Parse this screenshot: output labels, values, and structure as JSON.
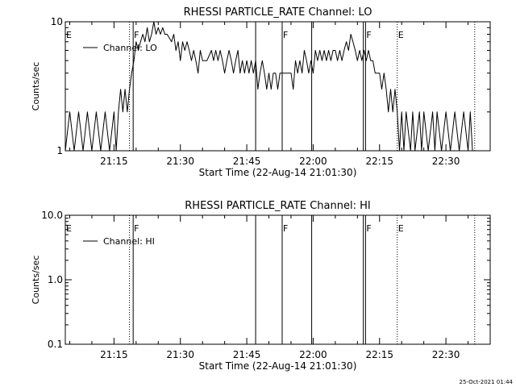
{
  "timestamp": "25-Oct-2021 01:44",
  "chart_data": [
    {
      "type": "line",
      "title": "RHESSI PARTICLE_RATE Channel: LO",
      "xlabel": "Start Time (22-Aug-14 21:01:30)",
      "ylabel": "Counts/sec",
      "y_scale": "log",
      "ylim": [
        1,
        10
      ],
      "y_tick_labels": [
        "1",
        "10"
      ],
      "xlim": [
        "21:04:00",
        "22:40:00"
      ],
      "x_tick_labels": [
        "21:15",
        "21:30",
        "21:45",
        "22:00",
        "22:15",
        "22:30"
      ],
      "legend": {
        "entries": [
          "Channel: LO"
        ],
        "position": "top-left"
      },
      "series": [
        {
          "name": "Channel: LO",
          "points": [
            [
              "21:04:00",
              1
            ],
            [
              "21:05:00",
              2
            ],
            [
              "21:06:00",
              1
            ],
            [
              "21:07:00",
              2
            ],
            [
              "21:08:00",
              1
            ],
            [
              "21:09:00",
              2
            ],
            [
              "21:10:00",
              1
            ],
            [
              "21:11:00",
              2
            ],
            [
              "21:12:00",
              1
            ],
            [
              "21:13:00",
              2
            ],
            [
              "21:14:00",
              1
            ],
            [
              "21:15:00",
              2
            ],
            [
              "21:15:30",
              1
            ],
            [
              "21:16:00",
              2
            ],
            [
              "21:16:30",
              3
            ],
            [
              "21:17:00",
              2
            ],
            [
              "21:17:30",
              3
            ],
            [
              "21:18:00",
              2
            ],
            [
              "21:18:30",
              3
            ],
            [
              "21:19:00",
              4
            ],
            [
              "21:19:30",
              5
            ],
            [
              "21:20:00",
              7
            ],
            [
              "21:20:30",
              6
            ],
            [
              "21:21:00",
              7
            ],
            [
              "21:21:30",
              8
            ],
            [
              "21:22:00",
              7
            ],
            [
              "21:22:30",
              9
            ],
            [
              "21:23:00",
              7
            ],
            [
              "21:23:30",
              8
            ],
            [
              "21:24:00",
              10
            ],
            [
              "21:24:30",
              8
            ],
            [
              "21:25:00",
              9
            ],
            [
              "21:25:30",
              8
            ],
            [
              "21:26:00",
              9
            ],
            [
              "21:26:30",
              8
            ],
            [
              "21:27:00",
              8
            ],
            [
              "21:28:00",
              7
            ],
            [
              "21:28:30",
              8
            ],
            [
              "21:29:00",
              6
            ],
            [
              "21:29:30",
              7
            ],
            [
              "21:30:00",
              5
            ],
            [
              "21:30:30",
              7
            ],
            [
              "21:31:00",
              6
            ],
            [
              "21:31:30",
              7
            ],
            [
              "21:32:00",
              6
            ],
            [
              "21:32:30",
              5
            ],
            [
              "21:33:00",
              6
            ],
            [
              "21:33:30",
              5
            ],
            [
              "21:34:00",
              4
            ],
            [
              "21:34:30",
              6
            ],
            [
              "21:35:00",
              5
            ],
            [
              "21:36:00",
              5
            ],
            [
              "21:37:00",
              6
            ],
            [
              "21:37:30",
              5
            ],
            [
              "21:38:00",
              6
            ],
            [
              "21:38:30",
              5
            ],
            [
              "21:39:00",
              6
            ],
            [
              "21:39:30",
              5
            ],
            [
              "21:40:00",
              4
            ],
            [
              "21:40:30",
              5
            ],
            [
              "21:41:00",
              6
            ],
            [
              "21:41:30",
              5
            ],
            [
              "21:42:00",
              4
            ],
            [
              "21:42:30",
              5
            ],
            [
              "21:43:00",
              6
            ],
            [
              "21:43:30",
              4
            ],
            [
              "21:44:00",
              5
            ],
            [
              "21:44:30",
              4
            ],
            [
              "21:45:00",
              5
            ],
            [
              "21:45:30",
              4
            ],
            [
              "21:46:00",
              5
            ],
            [
              "21:46:30",
              4
            ],
            [
              "21:47:00",
              5
            ],
            [
              "21:47:30",
              3
            ],
            [
              "21:48:00",
              4
            ],
            [
              "21:48:30",
              5
            ],
            [
              "21:49:00",
              4
            ],
            [
              "21:49:30",
              3
            ],
            [
              "21:50:00",
              4
            ],
            [
              "21:50:30",
              3
            ],
            [
              "21:51:00",
              4
            ],
            [
              "21:51:30",
              4
            ],
            [
              "21:52:00",
              3
            ],
            [
              "21:52:30",
              4
            ],
            [
              "21:53:00",
              4
            ],
            [
              "21:54:00",
              4
            ],
            [
              "21:55:00",
              4
            ],
            [
              "21:55:30",
              3
            ],
            [
              "21:56:00",
              5
            ],
            [
              "21:56:30",
              4
            ],
            [
              "21:57:00",
              5
            ],
            [
              "21:57:30",
              4
            ],
            [
              "21:58:00",
              6
            ],
            [
              "21:58:30",
              5
            ],
            [
              "21:59:00",
              4
            ],
            [
              "21:59:30",
              5
            ],
            [
              "22:00:00",
              4
            ],
            [
              "22:00:30",
              6
            ],
            [
              "22:01:00",
              5
            ],
            [
              "22:01:30",
              6
            ],
            [
              "22:02:00",
              5
            ],
            [
              "22:02:30",
              6
            ],
            [
              "22:03:00",
              5
            ],
            [
              "22:03:30",
              6
            ],
            [
              "22:04:00",
              5
            ],
            [
              "22:04:30",
              6
            ],
            [
              "22:05:00",
              6
            ],
            [
              "22:05:30",
              5
            ],
            [
              "22:06:00",
              6
            ],
            [
              "22:06:30",
              5
            ],
            [
              "22:07:00",
              6
            ],
            [
              "22:07:30",
              7
            ],
            [
              "22:08:00",
              6
            ],
            [
              "22:08:30",
              8
            ],
            [
              "22:09:00",
              7
            ],
            [
              "22:09:30",
              6
            ],
            [
              "22:10:00",
              5
            ],
            [
              "22:10:30",
              6
            ],
            [
              "22:11:00",
              5
            ],
            [
              "22:11:30",
              6
            ],
            [
              "22:12:00",
              5
            ],
            [
              "22:12:30",
              6
            ],
            [
              "22:13:00",
              5
            ],
            [
              "22:13:30",
              5
            ],
            [
              "22:14:00",
              4
            ],
            [
              "22:15:00",
              4
            ],
            [
              "22:15:30",
              3
            ],
            [
              "22:16:00",
              4
            ],
            [
              "22:16:30",
              3
            ],
            [
              "22:17:00",
              2
            ],
            [
              "22:17:30",
              3
            ],
            [
              "22:18:00",
              2
            ],
            [
              "22:18:30",
              3
            ],
            [
              "22:19:00",
              2
            ],
            [
              "22:19:30",
              1
            ],
            [
              "22:20:00",
              2
            ],
            [
              "22:20:30",
              1
            ],
            [
              "22:21:00",
              2
            ],
            [
              "22:22:00",
              1
            ],
            [
              "22:22:30",
              2
            ],
            [
              "22:23:00",
              1
            ],
            [
              "22:24:00",
              2
            ],
            [
              "22:24:30",
              1
            ],
            [
              "22:25:00",
              2
            ],
            [
              "22:26:00",
              1
            ],
            [
              "22:27:00",
              2
            ],
            [
              "22:27:30",
              1
            ],
            [
              "22:28:00",
              2
            ],
            [
              "22:29:00",
              1
            ],
            [
              "22:30:00",
              2
            ],
            [
              "22:31:00",
              1
            ],
            [
              "22:32:00",
              2
            ],
            [
              "22:33:00",
              1
            ],
            [
              "22:34:00",
              2
            ],
            [
              "22:35:00",
              1
            ],
            [
              "22:35:30",
              2
            ],
            [
              "22:36:00",
              1
            ]
          ]
        }
      ],
      "markers": [
        {
          "time": "21:04:00",
          "label": "E",
          "style": "none"
        },
        {
          "time": "21:18:30",
          "label": "",
          "style": "dotted"
        },
        {
          "time": "21:19:20",
          "label": "F",
          "style": "solid"
        },
        {
          "time": "21:47:00",
          "label": "",
          "style": "solid"
        },
        {
          "time": "21:53:00",
          "label": "F",
          "style": "solid"
        },
        {
          "time": "21:59:40",
          "label": "",
          "style": "solid"
        },
        {
          "time": "22:11:20",
          "label": "",
          "style": "solid"
        },
        {
          "time": "22:11:50",
          "label": "F",
          "style": "solid"
        },
        {
          "time": "22:19:00",
          "label": "E",
          "style": "dotted"
        },
        {
          "time": "22:36:30",
          "label": "",
          "style": "dotted"
        }
      ]
    },
    {
      "type": "line",
      "title": "RHESSI PARTICLE_RATE Channel: HI",
      "xlabel": "Start Time (22-Aug-14 21:01:30)",
      "ylabel": "Counts/sec",
      "y_scale": "log",
      "ylim": [
        0.1,
        10
      ],
      "y_tick_labels": [
        "0.1",
        "1.0",
        "10.0"
      ],
      "xlim": [
        "21:04:00",
        "22:40:00"
      ],
      "x_tick_labels": [
        "21:15",
        "21:30",
        "21:45",
        "22:00",
        "22:15",
        "22:30"
      ],
      "legend": {
        "entries": [
          "Channel: HI"
        ],
        "position": "top-left"
      },
      "series": [
        {
          "name": "Channel: HI",
          "points": []
        }
      ],
      "markers": [
        {
          "time": "21:04:00",
          "label": "E",
          "style": "none"
        },
        {
          "time": "21:18:30",
          "label": "",
          "style": "dotted"
        },
        {
          "time": "21:19:20",
          "label": "F",
          "style": "solid"
        },
        {
          "time": "21:47:00",
          "label": "",
          "style": "solid"
        },
        {
          "time": "21:53:00",
          "label": "F",
          "style": "solid"
        },
        {
          "time": "21:59:40",
          "label": "",
          "style": "solid"
        },
        {
          "time": "22:11:20",
          "label": "",
          "style": "solid"
        },
        {
          "time": "22:11:50",
          "label": "F",
          "style": "solid"
        },
        {
          "time": "22:19:00",
          "label": "E",
          "style": "dotted"
        },
        {
          "time": "22:36:30",
          "label": "",
          "style": "dotted"
        }
      ]
    }
  ]
}
